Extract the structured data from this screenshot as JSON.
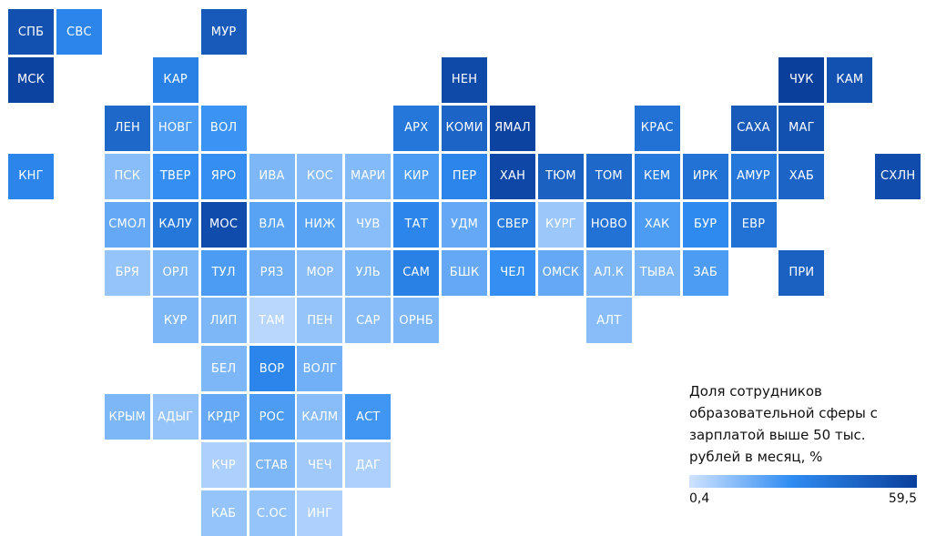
{
  "colors": {
    "low": "#cfe3ff",
    "mid": "#2f8cf2",
    "high": "#0a3f9c"
  },
  "legend": {
    "title": "Доля сотрудников образовательной сферы с зарплатой выше 50 тыс. рублей в месяц, %",
    "min": "0,4",
    "max": "59,5"
  },
  "chart_data": {
    "type": "heatmap",
    "title": "",
    "value_range": [
      0.4,
      59.5
    ],
    "tiles": [
      {
        "label": "СПБ",
        "row": 0,
        "col": 0,
        "value": 52
      },
      {
        "label": "СВС",
        "row": 0,
        "col": 1,
        "value": 30
      },
      {
        "label": "МУР",
        "row": 0,
        "col": 4,
        "value": 48
      },
      {
        "label": "МСК",
        "row": 1,
        "col": 0,
        "value": 58
      },
      {
        "label": "КАР",
        "row": 1,
        "col": 3,
        "value": 32
      },
      {
        "label": "НЕН",
        "row": 1,
        "col": 9,
        "value": 55
      },
      {
        "label": "ЧУК",
        "row": 1,
        "col": 16,
        "value": 59.5
      },
      {
        "label": "КАМ",
        "row": 1,
        "col": 17,
        "value": 52
      },
      {
        "label": "ЛЕН",
        "row": 2,
        "col": 2,
        "value": 42
      },
      {
        "label": "НОВГ",
        "row": 2,
        "col": 3,
        "value": 22
      },
      {
        "label": "ВОЛ",
        "row": 2,
        "col": 4,
        "value": 25
      },
      {
        "label": "АРХ",
        "row": 2,
        "col": 8,
        "value": 36
      },
      {
        "label": "КОМИ",
        "row": 2,
        "col": 9,
        "value": 44
      },
      {
        "label": "ЯМАЛ",
        "row": 2,
        "col": 10,
        "value": 58
      },
      {
        "label": "КРАС",
        "row": 2,
        "col": 13,
        "value": 38
      },
      {
        "label": "САХА",
        "row": 2,
        "col": 15,
        "value": 48
      },
      {
        "label": "МАГ",
        "row": 2,
        "col": 16,
        "value": 52
      },
      {
        "label": "КНГ",
        "row": 3,
        "col": 0,
        "value": 30
      },
      {
        "label": "ПСК",
        "row": 3,
        "col": 2,
        "value": 12
      },
      {
        "label": "ТВЕР",
        "row": 3,
        "col": 3,
        "value": 26
      },
      {
        "label": "ЯРО",
        "row": 3,
        "col": 4,
        "value": 26
      },
      {
        "label": "ИВА",
        "row": 3,
        "col": 5,
        "value": 14
      },
      {
        "label": "КОС",
        "row": 3,
        "col": 6,
        "value": 12
      },
      {
        "label": "МАРИ",
        "row": 3,
        "col": 7,
        "value": 13
      },
      {
        "label": "КИР",
        "row": 3,
        "col": 8,
        "value": 22
      },
      {
        "label": "ПЕР",
        "row": 3,
        "col": 9,
        "value": 30
      },
      {
        "label": "ХАН",
        "row": 3,
        "col": 10,
        "value": 56
      },
      {
        "label": "ТЮМ",
        "row": 3,
        "col": 11,
        "value": 45
      },
      {
        "label": "ТОМ",
        "row": 3,
        "col": 12,
        "value": 42
      },
      {
        "label": "КЕМ",
        "row": 3,
        "col": 13,
        "value": 34
      },
      {
        "label": "ИРК",
        "row": 3,
        "col": 14,
        "value": 38
      },
      {
        "label": "АМУР",
        "row": 3,
        "col": 15,
        "value": 36
      },
      {
        "label": "ХАБ",
        "row": 3,
        "col": 16,
        "value": 44
      },
      {
        "label": "СХЛН",
        "row": 3,
        "col": 18,
        "value": 54
      },
      {
        "label": "СМОЛ",
        "row": 4,
        "col": 2,
        "value": 18
      },
      {
        "label": "КАЛУ",
        "row": 4,
        "col": 3,
        "value": 36
      },
      {
        "label": "МОС",
        "row": 4,
        "col": 4,
        "value": 54
      },
      {
        "label": "ВЛА",
        "row": 4,
        "col": 5,
        "value": 20
      },
      {
        "label": "НИЖ",
        "row": 4,
        "col": 6,
        "value": 20
      },
      {
        "label": "ЧУВ",
        "row": 4,
        "col": 7,
        "value": 12
      },
      {
        "label": "ТАТ",
        "row": 4,
        "col": 8,
        "value": 30
      },
      {
        "label": "УДМ",
        "row": 4,
        "col": 9,
        "value": 18
      },
      {
        "label": "СВЕР",
        "row": 4,
        "col": 10,
        "value": 35
      },
      {
        "label": "КУРГ",
        "row": 4,
        "col": 11,
        "value": 9
      },
      {
        "label": "НОВО",
        "row": 4,
        "col": 12,
        "value": 38
      },
      {
        "label": "ХАК",
        "row": 4,
        "col": 13,
        "value": 22
      },
      {
        "label": "БУР",
        "row": 4,
        "col": 14,
        "value": 28
      },
      {
        "label": "ЕВР",
        "row": 4,
        "col": 15,
        "value": 38
      },
      {
        "label": "БРЯ",
        "row": 5,
        "col": 2,
        "value": 10
      },
      {
        "label": "ОРЛ",
        "row": 5,
        "col": 3,
        "value": 14
      },
      {
        "label": "ТУЛ",
        "row": 5,
        "col": 4,
        "value": 22
      },
      {
        "label": "РЯЗ",
        "row": 5,
        "col": 5,
        "value": 16
      },
      {
        "label": "МОР",
        "row": 5,
        "col": 6,
        "value": 12
      },
      {
        "label": "УЛЬ",
        "row": 5,
        "col": 7,
        "value": 14
      },
      {
        "label": "САМ",
        "row": 5,
        "col": 8,
        "value": 32
      },
      {
        "label": "БШК",
        "row": 5,
        "col": 9,
        "value": 18
      },
      {
        "label": "ЧЕЛ",
        "row": 5,
        "col": 10,
        "value": 26
      },
      {
        "label": "ОМСК",
        "row": 5,
        "col": 11,
        "value": 18
      },
      {
        "label": "АЛ.К",
        "row": 5,
        "col": 12,
        "value": 14
      },
      {
        "label": "ТЫВА",
        "row": 5,
        "col": 13,
        "value": 14
      },
      {
        "label": "ЗАБ",
        "row": 5,
        "col": 14,
        "value": 22
      },
      {
        "label": "ПРИ",
        "row": 5,
        "col": 16,
        "value": 45
      },
      {
        "label": "КУР",
        "row": 6,
        "col": 3,
        "value": 14
      },
      {
        "label": "ЛИП",
        "row": 6,
        "col": 4,
        "value": 14
      },
      {
        "label": "ТАМ",
        "row": 6,
        "col": 5,
        "value": 4
      },
      {
        "label": "ПЕН",
        "row": 6,
        "col": 6,
        "value": 10
      },
      {
        "label": "САР",
        "row": 6,
        "col": 7,
        "value": 12
      },
      {
        "label": "ОРНБ",
        "row": 6,
        "col": 8,
        "value": 14
      },
      {
        "label": "АЛТ",
        "row": 6,
        "col": 12,
        "value": 12
      },
      {
        "label": "БЕЛ",
        "row": 7,
        "col": 4,
        "value": 14
      },
      {
        "label": "ВОР",
        "row": 7,
        "col": 5,
        "value": 30
      },
      {
        "label": "ВОЛГ",
        "row": 7,
        "col": 6,
        "value": 16
      },
      {
        "label": "КРЫМ",
        "row": 8,
        "col": 2,
        "value": 14
      },
      {
        "label": "АДЫГ",
        "row": 8,
        "col": 3,
        "value": 10
      },
      {
        "label": "КРДР",
        "row": 8,
        "col": 4,
        "value": 18
      },
      {
        "label": "РОС",
        "row": 8,
        "col": 5,
        "value": 22
      },
      {
        "label": "КАЛМ",
        "row": 8,
        "col": 6,
        "value": 12
      },
      {
        "label": "АСТ",
        "row": 8,
        "col": 7,
        "value": 24
      },
      {
        "label": "КЧР",
        "row": 9,
        "col": 4,
        "value": 6
      },
      {
        "label": "СТАВ",
        "row": 9,
        "col": 5,
        "value": 14
      },
      {
        "label": "ЧЕЧ",
        "row": 9,
        "col": 6,
        "value": 8
      },
      {
        "label": "ДАГ",
        "row": 9,
        "col": 7,
        "value": 6
      },
      {
        "label": "КАБ",
        "row": 10,
        "col": 4,
        "value": 10
      },
      {
        "label": "С.ОС",
        "row": 10,
        "col": 5,
        "value": 10
      },
      {
        "label": "ИНГ",
        "row": 10,
        "col": 6,
        "value": 6
      }
    ]
  }
}
